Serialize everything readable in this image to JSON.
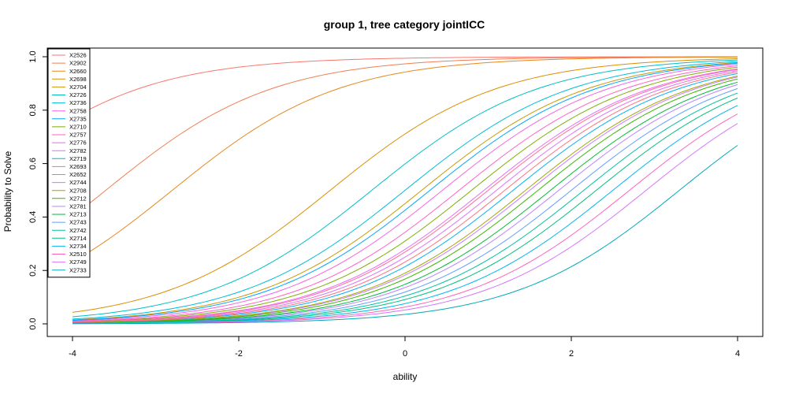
{
  "chart_data": {
    "type": "line",
    "title": "group 1, tree category jointICC",
    "xlabel": "ability",
    "ylabel": "Probability to Solve",
    "xlim": [
      -4,
      4
    ],
    "ylim": [
      0,
      1
    ],
    "xticks": [
      "-4",
      "-2",
      "0",
      "2",
      "4"
    ],
    "yticks": [
      "0.0",
      "0.2",
      "0.4",
      "0.6",
      "0.8",
      "1.0"
    ],
    "legend_position": "top-left",
    "grid": false,
    "series": [
      {
        "name": "X2526",
        "color": "#F8766D",
        "b": -5.2,
        "a": 1.0
      },
      {
        "name": "X2902",
        "color": "#F17D52",
        "b": -3.6,
        "a": 1.0
      },
      {
        "name": "X2660",
        "color": "#E7861B",
        "b": -2.8,
        "a": 1.0
      },
      {
        "name": "X2698",
        "color": "#DB8E00",
        "b": -0.9,
        "a": 1.0
      },
      {
        "name": "X2704",
        "color": "#C99800",
        "b": 0.2,
        "a": 1.0
      },
      {
        "name": "X2726",
        "color": "#00BFC4",
        "b": -0.4,
        "a": 1.0
      },
      {
        "name": "X2736",
        "color": "#00BCD8",
        "b": 0.0,
        "a": 1.0
      },
      {
        "name": "X2758",
        "color": "#F564E3",
        "b": 0.45,
        "a": 1.0
      },
      {
        "name": "X2735",
        "color": "#00A5FF",
        "b": 0.3,
        "a": 1.0
      },
      {
        "name": "X2710",
        "color": "#7CAE00",
        "b": 0.8,
        "a": 1.0
      },
      {
        "name": "X2757",
        "color": "#FF61C3",
        "b": 0.65,
        "a": 1.0
      },
      {
        "name": "X2776",
        "color": "#E76BF3",
        "b": 0.95,
        "a": 1.0
      },
      {
        "name": "X2782",
        "color": "#DE71F9",
        "b": 1.1,
        "a": 1.0
      },
      {
        "name": "X2719",
        "color": "#00B0F6",
        "b": 1.3,
        "a": 1.0
      },
      {
        "name": "X2693",
        "color": "#FF6A98",
        "b": 1.0,
        "a": 1.0
      },
      {
        "name": "X2652",
        "color": "#FC717F",
        "b": 1.2,
        "a": 1.0
      },
      {
        "name": "X2744",
        "color": "#C77CFF",
        "b": 1.5,
        "a": 1.0
      },
      {
        "name": "X2708",
        "color": "#A3A500",
        "b": 1.45,
        "a": 1.0
      },
      {
        "name": "X2712",
        "color": "#39B600",
        "b": 1.6,
        "a": 1.0
      },
      {
        "name": "X2781",
        "color": "#B983FF",
        "b": 1.85,
        "a": 1.0
      },
      {
        "name": "X2713",
        "color": "#00BA38",
        "b": 1.75,
        "a": 1.0
      },
      {
        "name": "X2743",
        "color": "#619CFF",
        "b": 2.0,
        "a": 1.0
      },
      {
        "name": "X2742",
        "color": "#00C19F",
        "b": 2.15,
        "a": 1.0
      },
      {
        "name": "X2714",
        "color": "#00BF7D",
        "b": 2.3,
        "a": 1.0
      },
      {
        "name": "X2734",
        "color": "#00B4EF",
        "b": 2.5,
        "a": 1.0
      },
      {
        "name": "X2510",
        "color": "#FF62BC",
        "b": 2.7,
        "a": 1.0
      },
      {
        "name": "X2749",
        "color": "#D575FE",
        "b": 2.9,
        "a": 1.0
      },
      {
        "name": "X2733",
        "color": "#00A9B8",
        "b": 3.3,
        "a": 1.0
      }
    ]
  }
}
